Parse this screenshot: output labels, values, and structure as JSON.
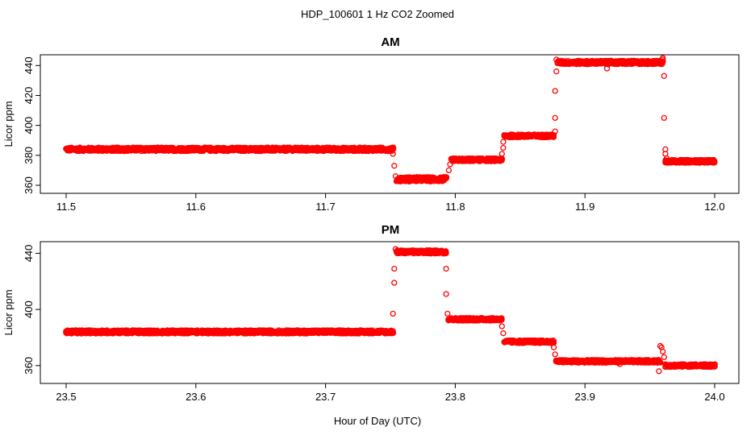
{
  "figure": {
    "title": "HDP_100601  1 Hz CO2 Zoomed",
    "xlabel": "Hour of Day (UTC)",
    "marker_color": "#ff0000"
  },
  "chart_data": [
    {
      "type": "scatter",
      "title": "AM",
      "ylabel": "Licor ppm",
      "xlim": [
        11.5,
        12.0
      ],
      "ylim": [
        360,
        445
      ],
      "xticks": [
        "11.5",
        "11.6",
        "11.7",
        "11.8",
        "11.9",
        "12.0"
      ],
      "yticks": [
        "360",
        "380",
        "400",
        "420",
        "440"
      ],
      "segments": [
        {
          "x0": 11.5,
          "x1": 11.752,
          "y": 384,
          "noise": 1.2
        },
        {
          "x0": 11.755,
          "x1": 11.793,
          "y": 364,
          "noise": 1.5
        },
        {
          "x0": 11.797,
          "x1": 11.836,
          "y": 377,
          "noise": 1.0
        },
        {
          "x0": 11.838,
          "x1": 11.876,
          "y": 393,
          "noise": 1.0
        },
        {
          "x0": 11.879,
          "x1": 11.96,
          "y": 442,
          "noise": 1.2
        },
        {
          "x0": 11.962,
          "x1": 12.0,
          "y": 376,
          "noise": 1.0
        }
      ],
      "transitions": [
        {
          "x": 11.752,
          "y": 381
        },
        {
          "x": 11.753,
          "y": 373
        },
        {
          "x": 11.754,
          "y": 366
        },
        {
          "x": 11.795,
          "y": 370
        },
        {
          "x": 11.796,
          "y": 374
        },
        {
          "x": 11.836,
          "y": 381
        },
        {
          "x": 11.837,
          "y": 385
        },
        {
          "x": 11.837,
          "y": 389
        },
        {
          "x": 11.877,
          "y": 396
        },
        {
          "x": 11.877,
          "y": 405
        },
        {
          "x": 11.877,
          "y": 423
        },
        {
          "x": 11.878,
          "y": 436
        },
        {
          "x": 11.878,
          "y": 444
        },
        {
          "x": 11.917,
          "y": 438
        },
        {
          "x": 11.96,
          "y": 445
        },
        {
          "x": 11.96,
          "y": 444
        },
        {
          "x": 11.961,
          "y": 433
        },
        {
          "x": 11.961,
          "y": 405
        },
        {
          "x": 11.962,
          "y": 384
        },
        {
          "x": 11.962,
          "y": 381
        },
        {
          "x": 11.963,
          "y": 378
        }
      ]
    },
    {
      "type": "scatter",
      "title": "PM",
      "ylabel": "Licor ppm",
      "xlim": [
        23.5,
        24.0
      ],
      "ylim": [
        353,
        446
      ],
      "xticks": [
        "23.5",
        "23.6",
        "23.7",
        "23.8",
        "23.9",
        "24.0"
      ],
      "yticks": [
        "360",
        "400",
        "440"
      ],
      "segments": [
        {
          "x0": 23.5,
          "x1": 23.752,
          "y": 384,
          "noise": 1.2
        },
        {
          "x0": 23.755,
          "x1": 23.793,
          "y": 441,
          "noise": 1.2
        },
        {
          "x0": 23.795,
          "x1": 23.836,
          "y": 393,
          "noise": 1.0
        },
        {
          "x0": 23.838,
          "x1": 23.876,
          "y": 377,
          "noise": 1.0
        },
        {
          "x0": 23.878,
          "x1": 23.958,
          "y": 363,
          "noise": 1.0
        },
        {
          "x0": 23.962,
          "x1": 24.0,
          "y": 360,
          "noise": 1.0
        }
      ],
      "transitions": [
        {
          "x": 23.752,
          "y": 397
        },
        {
          "x": 23.753,
          "y": 419
        },
        {
          "x": 23.753,
          "y": 429
        },
        {
          "x": 23.754,
          "y": 443
        },
        {
          "x": 23.793,
          "y": 429
        },
        {
          "x": 23.793,
          "y": 411
        },
        {
          "x": 23.794,
          "y": 397
        },
        {
          "x": 23.836,
          "y": 388
        },
        {
          "x": 23.837,
          "y": 383
        },
        {
          "x": 23.876,
          "y": 373
        },
        {
          "x": 23.877,
          "y": 368
        },
        {
          "x": 23.927,
          "y": 361
        },
        {
          "x": 23.957,
          "y": 356
        },
        {
          "x": 23.958,
          "y": 374
        },
        {
          "x": 23.959,
          "y": 373
        },
        {
          "x": 23.96,
          "y": 370
        },
        {
          "x": 23.961,
          "y": 366
        }
      ]
    }
  ]
}
